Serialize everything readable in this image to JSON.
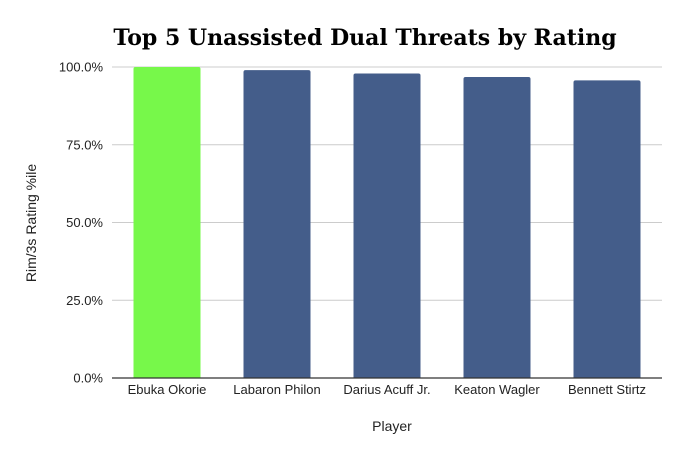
{
  "chart_data": {
    "type": "bar",
    "title": "Top 5 Unassisted Dual Threats by Rating",
    "xlabel": "Player",
    "ylabel": "Rim/3s Rating %ile",
    "categories": [
      "Ebuka Okorie",
      "Labaron Philon",
      "Darius Acuff Jr.",
      "Keaton Wagler",
      "Bennett Stirtz"
    ],
    "values": [
      100.0,
      99.0,
      97.9,
      96.8,
      95.7
    ],
    "ylim": [
      0,
      100
    ],
    "yticks": [
      "0.0%",
      "25.0%",
      "50.0%",
      "75.0%",
      "100.0%"
    ],
    "colors": [
      "#77f84a",
      "#445d8a",
      "#445d8a",
      "#445d8a",
      "#445d8a"
    ],
    "gridline_color": "#cccccc",
    "grid": true
  }
}
